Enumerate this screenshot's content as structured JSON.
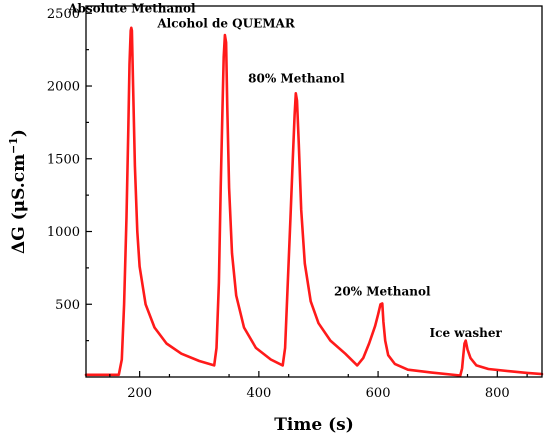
{
  "chart_data": {
    "type": "line",
    "xlabel": "Time (s)",
    "ylabel_main": "ΔG (μS.cm",
    "ylabel_sup": "−1",
    "ylabel_close": ")",
    "xlim": [
      110,
      875
    ],
    "ylim": [
      0,
      2550
    ],
    "xticks": [
      200,
      400,
      600,
      800
    ],
    "yticks": [
      500,
      1000,
      1500,
      2000,
      2500
    ],
    "grid": false,
    "color": "#ff1a1a",
    "annotations": [
      {
        "text": "Absolute Methanol",
        "x": 187,
        "y": 2490
      },
      {
        "text": "Alcohol de QUEMAR",
        "x": 345,
        "y": 2390
      },
      {
        "text": "80% Methanol",
        "x": 463,
        "y": 2010
      },
      {
        "text": "20% Methanol",
        "x": 607,
        "y": 545
      },
      {
        "text": "Ice washer",
        "x": 747,
        "y": 260
      }
    ],
    "series": [
      {
        "values": [
          [
            110,
            15
          ],
          [
            165,
            15
          ],
          [
            170,
            120
          ],
          [
            174,
            500
          ],
          [
            178,
            1100
          ],
          [
            181,
            1700
          ],
          [
            183,
            2150
          ],
          [
            185,
            2380
          ],
          [
            186,
            2400
          ],
          [
            187,
            2380
          ],
          [
            189,
            2000
          ],
          [
            192,
            1450
          ],
          [
            196,
            1000
          ],
          [
            200,
            760
          ],
          [
            210,
            500
          ],
          [
            225,
            340
          ],
          [
            245,
            230
          ],
          [
            270,
            160
          ],
          [
            300,
            110
          ],
          [
            325,
            80
          ],
          [
            329,
            200
          ],
          [
            333,
            650
          ],
          [
            336,
            1300
          ],
          [
            339,
            1850
          ],
          [
            341,
            2200
          ],
          [
            343,
            2350
          ],
          [
            345,
            2300
          ],
          [
            347,
            1850
          ],
          [
            350,
            1300
          ],
          [
            355,
            850
          ],
          [
            362,
            560
          ],
          [
            375,
            340
          ],
          [
            395,
            200
          ],
          [
            420,
            120
          ],
          [
            440,
            80
          ],
          [
            444,
            200
          ],
          [
            448,
            600
          ],
          [
            453,
            1100
          ],
          [
            457,
            1500
          ],
          [
            460,
            1800
          ],
          [
            462,
            1950
          ],
          [
            464,
            1900
          ],
          [
            467,
            1600
          ],
          [
            471,
            1150
          ],
          [
            477,
            780
          ],
          [
            487,
            520
          ],
          [
            500,
            370
          ],
          [
            520,
            250
          ],
          [
            545,
            160
          ],
          [
            565,
            80
          ],
          [
            575,
            130
          ],
          [
            585,
            230
          ],
          [
            595,
            350
          ],
          [
            600,
            430
          ],
          [
            604,
            500
          ],
          [
            607,
            505
          ],
          [
            609,
            380
          ],
          [
            612,
            250
          ],
          [
            617,
            150
          ],
          [
            628,
            90
          ],
          [
            650,
            50
          ],
          [
            690,
            30
          ],
          [
            738,
            10
          ],
          [
            741,
            60
          ],
          [
            743,
            150
          ],
          [
            745,
            230
          ],
          [
            747,
            250
          ],
          [
            750,
            190
          ],
          [
            755,
            130
          ],
          [
            765,
            80
          ],
          [
            785,
            55
          ],
          [
            820,
            40
          ],
          [
            850,
            28
          ],
          [
            875,
            20
          ]
        ]
      }
    ]
  }
}
